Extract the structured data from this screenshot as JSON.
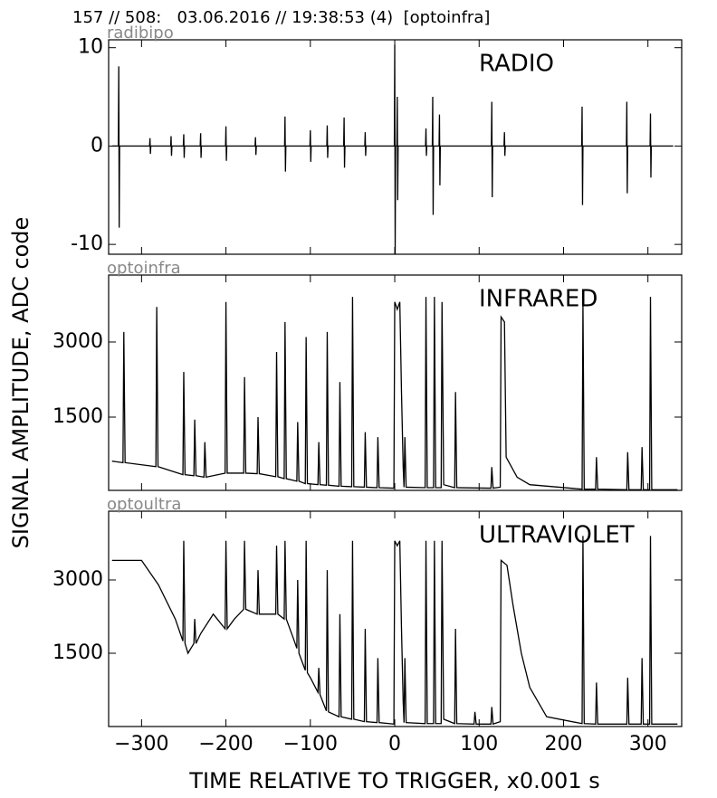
{
  "title": "157 // 508:   03.06.2016 // 19:38:53 (4)  [optoinfra]",
  "xlabel": "TIME RELATIVE TO TRIGGER,   x0.001 s",
  "ylabel": "SIGNAL AMPLITUDE,  ADC code",
  "chart_data": [
    {
      "type": "line",
      "label": "radibipo",
      "annotation": "RADIO",
      "xlim": [
        -339,
        340
      ],
      "ylim": [
        -11,
        10.8
      ],
      "yticks": [
        -10,
        0,
        10
      ],
      "x": [
        -335,
        -327.5,
        -327,
        -326.5,
        -326,
        -290.5,
        -290,
        -289.5,
        -289,
        -265.5,
        -265,
        -264.5,
        -264,
        -250.5,
        -250,
        -249.5,
        -249,
        -230.5,
        -230,
        -229.5,
        -229,
        -200.5,
        -200,
        -199.5,
        -199,
        -165.5,
        -165,
        -164.5,
        -164,
        -130.5,
        -130,
        -129.5,
        -129,
        -100.5,
        -100,
        -99.5,
        -99,
        -80.5,
        -80,
        -79.5,
        -79,
        -60.5,
        -60,
        -59.5,
        -59,
        -35.5,
        -35,
        -34.5,
        -34,
        -0.5,
        0,
        0.5,
        1,
        2.5,
        3,
        3.5,
        4,
        36.5,
        37,
        37.5,
        38,
        44.5,
        45,
        45.5,
        46,
        52.5,
        53,
        53.5,
        54,
        114.5,
        115,
        115.5,
        116,
        129.5,
        130,
        130.5,
        131,
        221.5,
        222,
        222.5,
        223,
        274.5,
        275,
        275.5,
        276,
        302.5,
        303,
        303.5,
        304,
        330
      ],
      "series": [
        {
          "color": "#000000",
          "values": [
            0,
            0,
            8.1,
            -8.3,
            0,
            0,
            0.8,
            -0.8,
            0,
            0,
            1.0,
            -1.0,
            0,
            0,
            1.2,
            -1.2,
            0,
            0,
            1.3,
            -1.2,
            0,
            0,
            2.0,
            -1.5,
            0,
            0,
            0.9,
            -0.9,
            0,
            0,
            3.0,
            -2.6,
            0,
            0,
            1.6,
            -1.6,
            0,
            0,
            2.1,
            -1.2,
            0,
            0,
            2.9,
            -2.2,
            0,
            0,
            1.4,
            -1.0,
            0,
            0,
            10.3,
            -11,
            0,
            0,
            5.0,
            -5.5,
            0,
            0,
            1.8,
            -1.0,
            0,
            0,
            5.0,
            -7.0,
            0,
            0,
            3.2,
            -4.0,
            0,
            0,
            4.5,
            -5.2,
            0,
            0,
            1.4,
            -1.0,
            0,
            0,
            4.0,
            -6.0,
            0,
            0,
            4.5,
            -4.8,
            0,
            0,
            3.3,
            -3.2,
            0,
            0
          ]
        }
      ]
    },
    {
      "type": "line",
      "label": "optoinfra",
      "annotation": "INFRARED",
      "xlim": [
        -339,
        340
      ],
      "ylim": [
        36,
        4337
      ],
      "yticks": [
        1500,
        3000
      ],
      "x": [
        -335,
        -322,
        -321,
        -319.5,
        -283,
        -282,
        -280.5,
        -251,
        -250,
        -248.5,
        -238,
        -237,
        -235.5,
        -226,
        -225,
        -223.5,
        -201,
        -200,
        -198.5,
        -179,
        -178,
        -176.5,
        -163,
        -162,
        -160.5,
        -141,
        -140,
        -138.5,
        -131,
        -130,
        -128.5,
        -116,
        -115,
        -113.5,
        -106,
        -105,
        -103.5,
        -91,
        -90,
        -88.5,
        -81,
        -80,
        -78.5,
        -66,
        -65,
        -63.5,
        -51,
        -50,
        -48.5,
        -36,
        -35,
        -33.5,
        -21,
        -20,
        -18.5,
        -1,
        0,
        3,
        6,
        8,
        10,
        11,
        12,
        13.5,
        36,
        37,
        38.5,
        46,
        47,
        48.5,
        55,
        56,
        58,
        71,
        72,
        73.5,
        114,
        115,
        116.5,
        125,
        126,
        130,
        132,
        145,
        160,
        222,
        223,
        224.5,
        238,
        239,
        240.5,
        275,
        276,
        277.5,
        292,
        293,
        294.5,
        302,
        303,
        304.5,
        335
      ],
      "series": [
        {
          "color": "#000000",
          "values": [
            620,
            590,
            3200,
            590,
            510,
            3700,
            510,
            350,
            2400,
            350,
            330,
            1450,
            330,
            300,
            1000,
            300,
            380,
            3800,
            380,
            380,
            2300,
            380,
            370,
            1500,
            370,
            310,
            2800,
            310,
            270,
            3400,
            270,
            220,
            1400,
            220,
            170,
            3100,
            170,
            150,
            1000,
            150,
            140,
            3200,
            140,
            120,
            2200,
            120,
            110,
            3900,
            110,
            100,
            1200,
            100,
            90,
            1100,
            90,
            80,
            3800,
            3650,
            3800,
            2000,
            500,
            100,
            1100,
            100,
            90,
            3900,
            90,
            90,
            3900,
            90,
            90,
            3800,
            150,
            90,
            2000,
            90,
            80,
            500,
            80,
            100,
            3500,
            3400,
            700,
            300,
            150,
            60,
            3800,
            60,
            60,
            700,
            60,
            50,
            800,
            50,
            50,
            900,
            50,
            50,
            3900,
            50,
            50
          ]
        }
      ]
    },
    {
      "type": "line",
      "label": "optoultra",
      "annotation": "ULTRAVIOLET",
      "xlim": [
        -339,
        340
      ],
      "ylim": [
        0,
        4407
      ],
      "yticks": [
        1500,
        3000
      ],
      "xticks": [
        {
          "value": -300,
          "label": "−300"
        },
        {
          "value": -200,
          "label": "−200"
        },
        {
          "value": -100,
          "label": "−100"
        },
        0,
        100,
        200,
        300
      ],
      "x": [
        -335,
        -300,
        -280,
        -260,
        -251,
        -250,
        -248.5,
        -245,
        -238,
        -237,
        -235.5,
        -230,
        -215,
        -201,
        -200,
        -198.5,
        -190,
        -179,
        -178,
        -176.5,
        -163,
        -162,
        -160.5,
        -141,
        -140,
        -138.5,
        -131,
        -130,
        -128.5,
        -120,
        -116,
        -115,
        -113.5,
        -106,
        -105,
        -103.5,
        -100,
        -91,
        -90,
        -88.5,
        -81,
        -80,
        -78.5,
        -66,
        -65,
        -63.5,
        -51,
        -50,
        -48.5,
        -36,
        -35,
        -33.5,
        -21,
        -20,
        -18.5,
        -1,
        0,
        3,
        6,
        8,
        10,
        11,
        12,
        13.5,
        36,
        37,
        38.5,
        46,
        47,
        48.5,
        55,
        56,
        58,
        71,
        72,
        73.5,
        94,
        95,
        96.5,
        114,
        115,
        116.5,
        125,
        126,
        133,
        140,
        150,
        160,
        180,
        222,
        223,
        224.5,
        238,
        239,
        240.5,
        275,
        276,
        277.5,
        292,
        293,
        294.5,
        302,
        303,
        304.5,
        335
      ],
      "series": [
        {
          "color": "#000000",
          "values": [
            3400,
            3400,
            2900,
            2200,
            1750,
            3800,
            1700,
            1500,
            1700,
            2200,
            1700,
            1900,
            2300,
            2000,
            3800,
            2000,
            2200,
            2400,
            3800,
            2400,
            2300,
            3200,
            2300,
            2300,
            3700,
            2300,
            2200,
            3800,
            2200,
            1800,
            1600,
            3000,
            1500,
            1150,
            3800,
            1100,
            1000,
            700,
            1200,
            650,
            320,
            3200,
            300,
            200,
            2300,
            200,
            150,
            3800,
            150,
            100,
            2000,
            100,
            80,
            1400,
            80,
            50,
            3800,
            3700,
            3800,
            2000,
            500,
            80,
            1400,
            80,
            60,
            3800,
            60,
            60,
            3800,
            60,
            60,
            3800,
            150,
            60,
            2000,
            60,
            50,
            300,
            50,
            50,
            400,
            50,
            100,
            3400,
            3300,
            2500,
            1500,
            800,
            200,
            60,
            3900,
            60,
            50,
            900,
            50,
            50,
            1000,
            50,
            50,
            1400,
            50,
            50,
            3900,
            50,
            50
          ]
        }
      ]
    }
  ]
}
